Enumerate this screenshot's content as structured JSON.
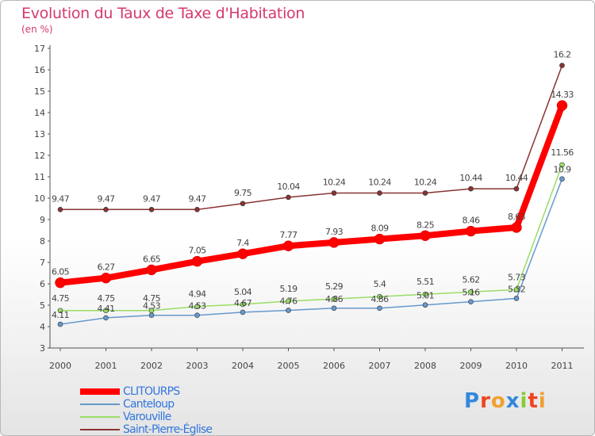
{
  "header": {
    "title": "Evolution du Taux de Taxe d'Habitation",
    "unit": "(en %)"
  },
  "chart_data": {
    "type": "line",
    "title": "Evolution du Taux de Taxe d'Habitation",
    "ylabel": "(en %)",
    "x": [
      "2000",
      "2001",
      "2002",
      "2003",
      "2004",
      "2005",
      "2006",
      "2007",
      "2008",
      "2009",
      "2010",
      "2011"
    ],
    "ylim": [
      3,
      17
    ],
    "yticks": [
      3,
      4,
      5,
      6,
      7,
      8,
      9,
      10,
      11,
      12,
      13,
      14,
      15,
      16,
      17
    ],
    "grid": false,
    "legend_position": "bottom-left",
    "series": [
      {
        "name": "CLITOURPS",
        "color": "#ff0000",
        "values": [
          6.05,
          6.27,
          6.65,
          7.05,
          7.4,
          7.77,
          7.93,
          8.09,
          8.25,
          8.46,
          8.63,
          14.33
        ],
        "labels": [
          "6.05",
          "6.27",
          "6.65",
          "7.05",
          "7.4",
          "7.77",
          "7.93",
          "8.09",
          "8.25",
          "8.46",
          "8.63",
          "14.33"
        ]
      },
      {
        "name": "Canteloup",
        "color": "#6699cc",
        "values": [
          4.11,
          4.41,
          4.53,
          4.53,
          4.67,
          4.76,
          4.86,
          4.86,
          5.01,
          5.16,
          5.32,
          10.9
        ],
        "labels": [
          "4.11",
          "4.41",
          "4.53",
          "4.53",
          "4.67",
          "4.76",
          "4.86",
          "4.86",
          "5.01",
          "5.16",
          "5.32",
          "10.9"
        ]
      },
      {
        "name": "Varouville",
        "color": "#99dd66",
        "values": [
          4.75,
          4.75,
          4.75,
          4.94,
          5.04,
          5.19,
          5.29,
          5.4,
          5.51,
          5.62,
          5.73,
          11.56
        ],
        "labels": [
          "4.75",
          "4.75",
          "4.75",
          "4.94",
          "5.04",
          "5.19",
          "5.29",
          "5.4",
          "5.51",
          "5.62",
          "5.73",
          "11.56"
        ]
      },
      {
        "name": "Saint-Pierre-Église",
        "color": "#883333",
        "values": [
          9.47,
          9.47,
          9.47,
          9.47,
          9.75,
          10.04,
          10.24,
          10.24,
          10.24,
          10.44,
          10.44,
          16.2
        ],
        "labels": [
          "9.47",
          "9.47",
          "9.47",
          "9.47",
          "9.75",
          "10.04",
          "10.24",
          "10.24",
          "10.24",
          "10.44",
          "10.44",
          "16.2"
        ]
      }
    ]
  },
  "legend": {
    "items": [
      {
        "label": "CLITOURPS",
        "color": "#ff0000"
      },
      {
        "label": "Canteloup",
        "color": "#6699cc"
      },
      {
        "label": "Varouville",
        "color": "#99dd66"
      },
      {
        "label": "Saint-Pierre-Église",
        "color": "#883333"
      }
    ]
  },
  "logo": {
    "text": "Proxiti",
    "colors": [
      "#3388dd",
      "#ee4422",
      "#f0a030",
      "#3388dd",
      "#88cc33",
      "#ee4422",
      "#f0a030"
    ]
  }
}
